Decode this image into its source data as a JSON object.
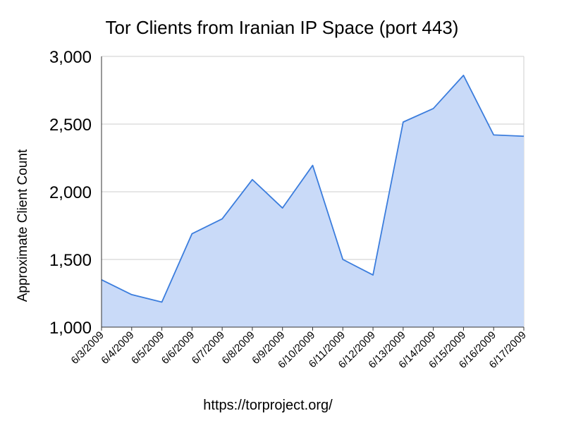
{
  "chart_data": {
    "type": "area",
    "title": "Tor Clients from Iranian IP Space (port 443)",
    "xlabel": "",
    "ylabel": "Approximate Client Count",
    "x": [
      "6/3/2009",
      "6/4/2009",
      "6/5/2009",
      "6/6/2009",
      "6/7/2009",
      "6/8/2009",
      "6/9/2009",
      "6/10/2009",
      "6/11/2009",
      "6/12/2009",
      "6/13/2009",
      "6/14/2009",
      "6/15/2009",
      "6/16/2009",
      "6/17/2009"
    ],
    "y": [
      1350,
      1240,
      1185,
      1690,
      1800,
      2090,
      1880,
      2195,
      1500,
      1385,
      2515,
      2615,
      2860,
      2420,
      2410
    ],
    "ylim": [
      1000,
      3000
    ],
    "yticks": [
      1000,
      1500,
      2000,
      2500,
      3000
    ],
    "ytick_labels": [
      "1,000",
      "1,500",
      "2,000",
      "2,500",
      "3,000"
    ],
    "grid": true,
    "legend": "none",
    "colors": {
      "line": "#3b7ddd",
      "fill": "#c9daf8",
      "grid": "#cccccc",
      "axis": "#333333"
    }
  },
  "footer": {
    "source_url": "https://torproject.org/"
  }
}
